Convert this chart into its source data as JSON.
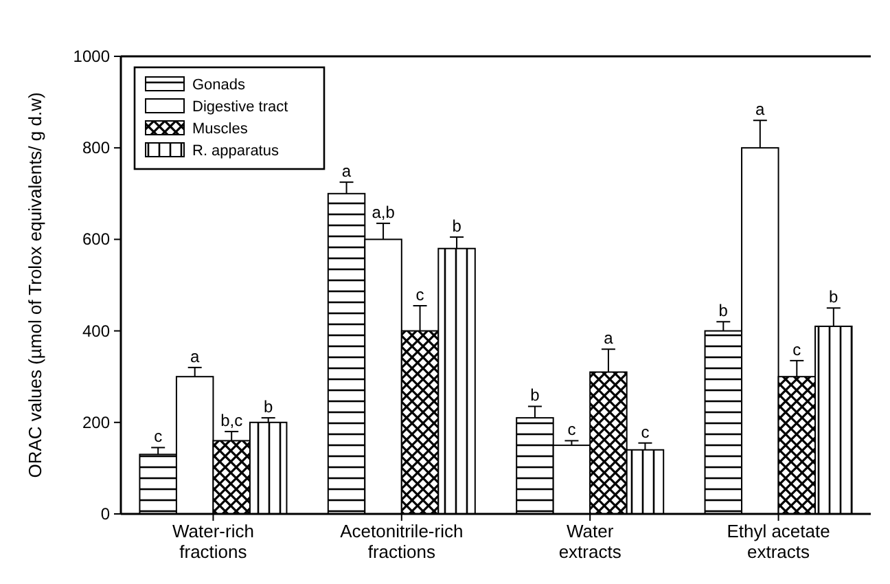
{
  "chart_data": {
    "type": "bar",
    "ylabel": "ORAC values (µmol of Trolox equivalents/ g d.w)",
    "categories": [
      "Water-rich fractions",
      "Acetonitrile-rich fractions",
      "Water extracts",
      "Ethyl acetate extracts"
    ],
    "ylim": [
      0,
      1000
    ],
    "yticks": [
      0,
      200,
      400,
      600,
      800,
      1000
    ],
    "grid": false,
    "legend": "top left",
    "series": [
      {
        "name": "Gonads",
        "color": "#000000",
        "values": [
          130,
          700,
          210,
          400
        ],
        "errors": [
          15,
          25,
          25,
          20
        ]
      },
      {
        "name": "Digestive tract",
        "color": "#ffffff",
        "values": [
          300,
          600,
          150,
          800
        ],
        "errors": [
          20,
          35,
          10,
          60
        ]
      },
      {
        "name": "Muscles",
        "color": "#000000",
        "values": [
          160,
          400,
          310,
          300
        ],
        "errors": [
          20,
          55,
          50,
          35
        ]
      },
      {
        "name": "R. apparatus",
        "color": "#000000",
        "values": [
          200,
          580,
          140,
          410
        ],
        "errors": [
          10,
          25,
          15,
          40
        ]
      }
    ],
    "annotations": [
      "c",
      "a",
      "b,c",
      "b",
      "a",
      "a,b",
      "c",
      "b",
      "b",
      "c",
      "a",
      "c",
      "b",
      "a",
      "c",
      "b"
    ]
  }
}
